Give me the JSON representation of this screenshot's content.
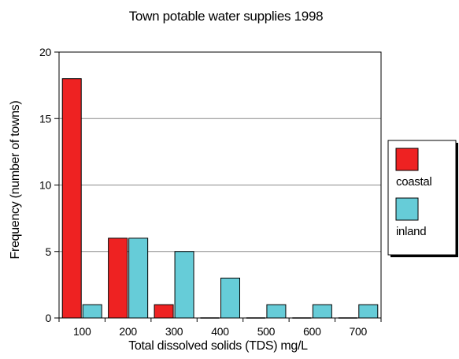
{
  "chart_data": {
    "type": "bar",
    "title": "Town potable water supplies 1998",
    "xlabel": "Total dissolved solids (TDS) mg/L",
    "ylabel": "Frequency (number of towns)",
    "categories": [
      "100",
      "200",
      "300",
      "400",
      "500",
      "600",
      "700"
    ],
    "yticks": [
      "0",
      "5",
      "10",
      "15",
      "20"
    ],
    "ylim": [
      0,
      20
    ],
    "grid": true,
    "legend_position": "right",
    "series": [
      {
        "name": "coastal",
        "color": "#ee2222",
        "values": [
          18,
          6,
          1,
          0,
          0,
          0,
          0
        ]
      },
      {
        "name": "inland",
        "color": "#66ccd8",
        "values": [
          1,
          6,
          5,
          3,
          1,
          1,
          1
        ]
      }
    ]
  }
}
